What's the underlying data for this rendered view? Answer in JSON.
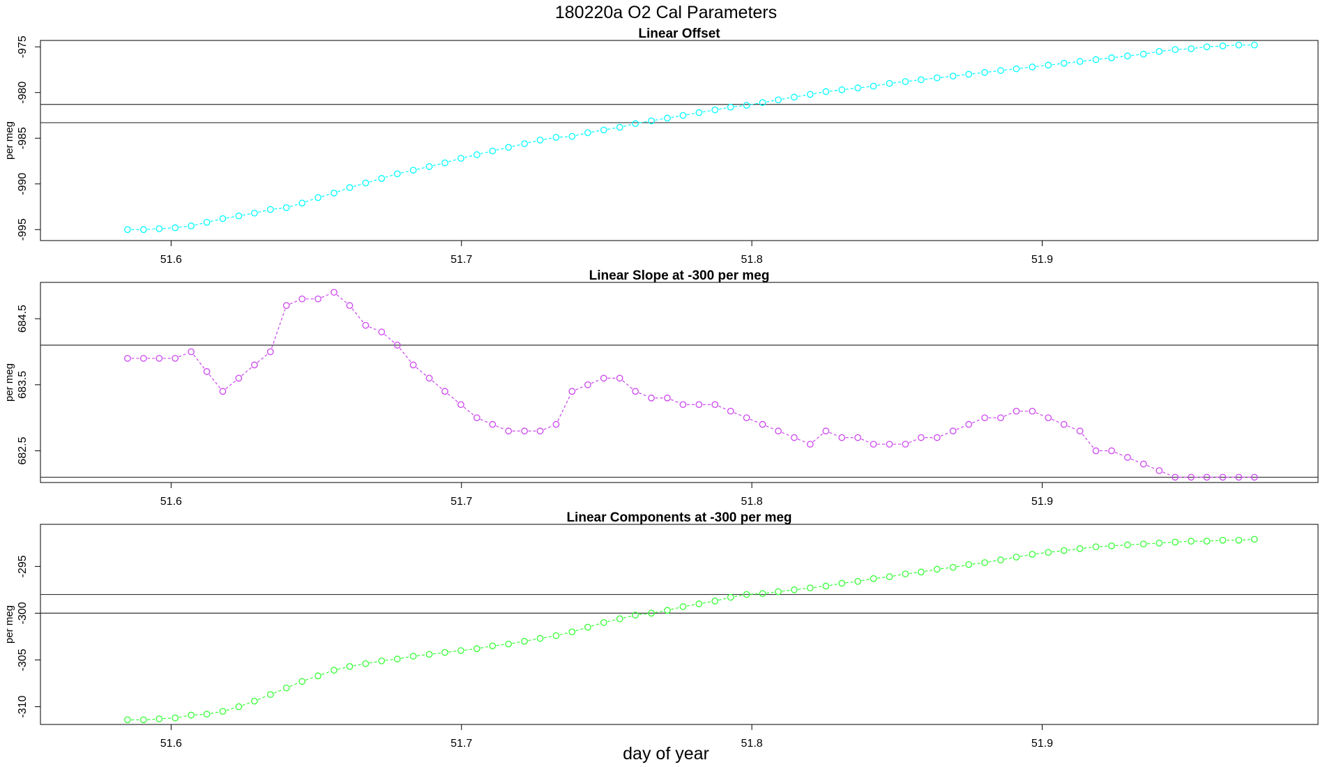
{
  "figure": {
    "title": "180220a   O2 Cal Parameters",
    "xlabel": "day of year"
  },
  "chart_data": [
    {
      "type": "line",
      "title": "Linear Offset",
      "ylabel": "per meg",
      "xlim": [
        51.555,
        51.995
      ],
      "ylim": [
        -996.2,
        -974.3
      ],
      "xticks": [
        51.6,
        51.7,
        51.8,
        51.9
      ],
      "xtick_labels": [
        "51.6",
        "51.7",
        "51.8",
        "51.9"
      ],
      "yticks": [
        -975,
        -980,
        -985,
        -990,
        -995
      ],
      "ytick_labels": [
        "-975",
        "-980",
        "-985",
        "-990",
        "-995"
      ],
      "hlines": [
        -981.3,
        -983.3
      ],
      "color": "#00ffff",
      "series": [
        {
          "x": [
            51.585,
            51.5905,
            51.5959,
            51.6014,
            51.6069,
            51.6123,
            51.6178,
            51.6233,
            51.6287,
            51.6342,
            51.6397,
            51.6451,
            51.6506,
            51.6561,
            51.6615,
            51.667,
            51.6725,
            51.6779,
            51.6834,
            51.6889,
            51.6943,
            51.6998,
            51.7053,
            51.7107,
            51.7162,
            51.7217,
            51.7271,
            51.7326,
            51.7381,
            51.7435,
            51.749,
            51.7545,
            51.7599,
            51.7654,
            51.7709,
            51.7763,
            51.7818,
            51.7873,
            51.7927,
            51.7982,
            51.8037,
            51.8091,
            51.8146,
            51.8201,
            51.8255,
            51.831,
            51.8365,
            51.8419,
            51.8474,
            51.8529,
            51.8583,
            51.8638,
            51.8693,
            51.8747,
            51.8802,
            51.8857,
            51.8911,
            51.8966,
            51.9021,
            51.9075,
            51.913,
            51.9185,
            51.9239,
            51.9294,
            51.9349,
            51.9403,
            51.9458,
            51.9513,
            51.9567,
            51.9622,
            51.9677,
            51.9731
          ],
          "y": [
            -995.0,
            -995.0,
            -994.9,
            -994.8,
            -994.6,
            -994.2,
            -993.8,
            -993.5,
            -993.2,
            -992.8,
            -992.6,
            -992.1,
            -991.5,
            -991.0,
            -990.4,
            -989.9,
            -989.4,
            -988.9,
            -988.5,
            -988.1,
            -987.7,
            -987.2,
            -986.8,
            -986.4,
            -986.0,
            -985.6,
            -985.2,
            -984.9,
            -984.8,
            -984.4,
            -984.1,
            -983.8,
            -983.4,
            -983.1,
            -982.8,
            -982.5,
            -982.2,
            -981.9,
            -981.6,
            -981.4,
            -981.1,
            -980.8,
            -980.5,
            -980.2,
            -979.9,
            -979.7,
            -979.5,
            -979.3,
            -979.0,
            -978.8,
            -978.6,
            -978.4,
            -978.2,
            -978.0,
            -977.8,
            -977.6,
            -977.4,
            -977.2,
            -977.0,
            -976.8,
            -976.6,
            -976.4,
            -976.2,
            -976.0,
            -975.8,
            -975.5,
            -975.3,
            -975.2,
            -975.0,
            -974.9,
            -974.8,
            -974.8
          ]
        }
      ]
    },
    {
      "type": "line",
      "title": "Linear Slope at -300 per meg",
      "ylabel": "per meg",
      "xlim": [
        51.555,
        51.995
      ],
      "ylim": [
        682.02,
        685.05
      ],
      "xticks": [
        51.6,
        51.7,
        51.8,
        51.9
      ],
      "xtick_labels": [
        "51.6",
        "51.7",
        "51.8",
        "51.9"
      ],
      "yticks": [
        684.5,
        683.5,
        682.5
      ],
      "ytick_labels": [
        "684.5",
        "683.5",
        "682.5"
      ],
      "hlines": [
        684.1,
        682.1
      ],
      "color": "#cc44ee",
      "series": [
        {
          "x": [
            51.585,
            51.5905,
            51.5959,
            51.6014,
            51.6069,
            51.6123,
            51.6178,
            51.6233,
            51.6287,
            51.6342,
            51.6397,
            51.6451,
            51.6506,
            51.6561,
            51.6615,
            51.667,
            51.6725,
            51.6779,
            51.6834,
            51.6889,
            51.6943,
            51.6998,
            51.7053,
            51.7107,
            51.7162,
            51.7217,
            51.7271,
            51.7326,
            51.7381,
            51.7435,
            51.749,
            51.7545,
            51.7599,
            51.7654,
            51.7709,
            51.7763,
            51.7818,
            51.7873,
            51.7927,
            51.7982,
            51.8037,
            51.8091,
            51.8146,
            51.8201,
            51.8255,
            51.831,
            51.8365,
            51.8419,
            51.8474,
            51.8529,
            51.8583,
            51.8638,
            51.8693,
            51.8747,
            51.8802,
            51.8857,
            51.8911,
            51.8966,
            51.9021,
            51.9075,
            51.913,
            51.9185,
            51.9239,
            51.9294,
            51.9349,
            51.9403,
            51.9458,
            51.9513,
            51.9567,
            51.9622,
            51.9677,
            51.9731
          ],
          "y": [
            683.9,
            683.9,
            683.9,
            683.9,
            684.0,
            683.7,
            683.4,
            683.6,
            683.8,
            684.0,
            684.7,
            684.8,
            684.8,
            684.9,
            684.7,
            684.4,
            684.3,
            684.1,
            683.8,
            683.6,
            683.4,
            683.2,
            683.0,
            682.9,
            682.8,
            682.8,
            682.8,
            682.9,
            683.4,
            683.5,
            683.6,
            683.6,
            683.4,
            683.3,
            683.3,
            683.2,
            683.2,
            683.2,
            683.1,
            683.0,
            682.9,
            682.8,
            682.7,
            682.6,
            682.8,
            682.7,
            682.7,
            682.6,
            682.6,
            682.6,
            682.7,
            682.7,
            682.8,
            682.9,
            683.0,
            683.0,
            683.1,
            683.1,
            683.0,
            682.9,
            682.8,
            682.5,
            682.5,
            682.4,
            682.3,
            682.2,
            682.1,
            682.1,
            682.1,
            682.1,
            682.1,
            682.1
          ]
        }
      ]
    },
    {
      "type": "line",
      "title": "Linear Components at -300 per meg",
      "ylabel": "per meg",
      "xlim": [
        51.555,
        51.995
      ],
      "ylim": [
        -311.9,
        -290.5
      ],
      "xticks": [
        51.6,
        51.7,
        51.8,
        51.9
      ],
      "xtick_labels": [
        "51.6",
        "51.7",
        "51.8",
        "51.9"
      ],
      "yticks": [
        -295,
        -300,
        -305,
        -310
      ],
      "ytick_labels": [
        "-295",
        "-300",
        "-305",
        "-310"
      ],
      "hlines": [
        -298.0,
        -300.0
      ],
      "color": "#33ff33",
      "series": [
        {
          "x": [
            51.585,
            51.5905,
            51.5959,
            51.6014,
            51.6069,
            51.6123,
            51.6178,
            51.6233,
            51.6287,
            51.6342,
            51.6397,
            51.6451,
            51.6506,
            51.6561,
            51.6615,
            51.667,
            51.6725,
            51.6779,
            51.6834,
            51.6889,
            51.6943,
            51.6998,
            51.7053,
            51.7107,
            51.7162,
            51.7217,
            51.7271,
            51.7326,
            51.7381,
            51.7435,
            51.749,
            51.7545,
            51.7599,
            51.7654,
            51.7709,
            51.7763,
            51.7818,
            51.7873,
            51.7927,
            51.7982,
            51.8037,
            51.8091,
            51.8146,
            51.8201,
            51.8255,
            51.831,
            51.8365,
            51.8419,
            51.8474,
            51.8529,
            51.8583,
            51.8638,
            51.8693,
            51.8747,
            51.8802,
            51.8857,
            51.8911,
            51.8966,
            51.9021,
            51.9075,
            51.913,
            51.9185,
            51.9239,
            51.9294,
            51.9349,
            51.9403,
            51.9458,
            51.9513,
            51.9567,
            51.9622,
            51.9677,
            51.9731
          ],
          "y": [
            -311.4,
            -311.4,
            -311.3,
            -311.2,
            -310.9,
            -310.8,
            -310.5,
            -310.0,
            -309.4,
            -308.7,
            -308.0,
            -307.3,
            -306.7,
            -306.1,
            -305.7,
            -305.4,
            -305.1,
            -304.9,
            -304.6,
            -304.4,
            -304.2,
            -304.0,
            -303.8,
            -303.5,
            -303.3,
            -303.0,
            -302.7,
            -302.4,
            -302.0,
            -301.5,
            -301.0,
            -300.6,
            -300.2,
            -300.0,
            -299.7,
            -299.3,
            -299.0,
            -298.7,
            -298.3,
            -298.0,
            -297.9,
            -297.7,
            -297.5,
            -297.3,
            -297.1,
            -296.8,
            -296.6,
            -296.3,
            -296.1,
            -295.8,
            -295.6,
            -295.3,
            -295.1,
            -294.8,
            -294.6,
            -294.3,
            -294.0,
            -293.7,
            -293.5,
            -293.3,
            -293.1,
            -292.9,
            -292.8,
            -292.7,
            -292.6,
            -292.5,
            -292.4,
            -292.3,
            -292.3,
            -292.2,
            -292.2,
            -292.1
          ]
        }
      ]
    }
  ]
}
